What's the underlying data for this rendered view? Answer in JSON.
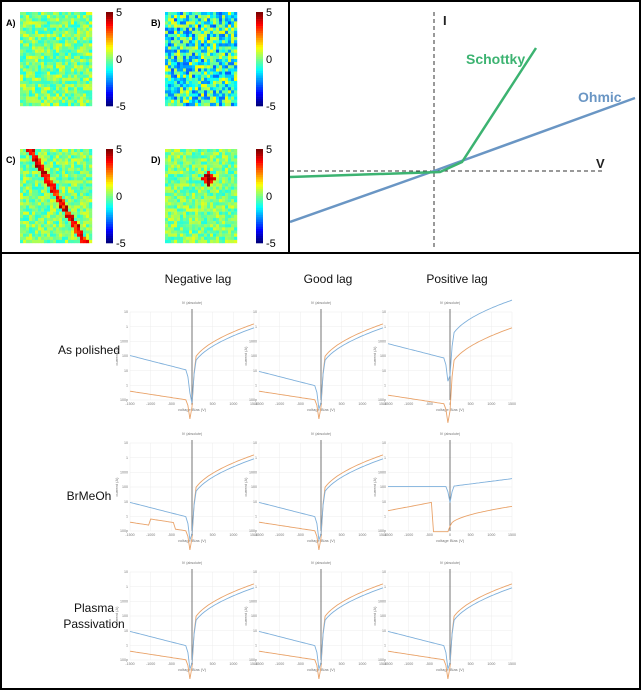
{
  "heatmaps": {
    "panels": [
      {
        "letter": "A)",
        "pattern": "noise-low"
      },
      {
        "letter": "B)",
        "pattern": "noise-high"
      },
      {
        "letter": "C)",
        "pattern": "diagonal-line"
      },
      {
        "letter": "D)",
        "pattern": "hot-cluster"
      }
    ],
    "colorbar_ticks": [
      "5",
      "0",
      "-5"
    ],
    "colorbar_ticks_d": [
      "5",
      "0",
      "-5"
    ],
    "colormap": "jet"
  },
  "iv_sketch": {
    "y_axis_label": "I",
    "x_axis_label": "V",
    "schottky_label": "Schottky",
    "ohmic_label": "Ohmic",
    "schottky_color": "#3cb371",
    "ohmic_color": "#6a96c4"
  },
  "grid": {
    "columns": [
      "Negative lag",
      "Good lag",
      "Positive lag"
    ],
    "rows": [
      "As polished",
      "BrMeOh",
      "Plasma Passivation"
    ],
    "subplot_title": "IV (absolute)",
    "x_axis_label": "voltage Bias (V)",
    "y_axis_label": "current (A)",
    "x_ticks": [
      "-1500",
      "-1000",
      "-500",
      "0",
      "500",
      "1000",
      "1500"
    ],
    "y_ticks": [
      "10",
      "1",
      "1000",
      "100",
      "10",
      "1",
      "100p"
    ],
    "series_colors": [
      "#e9a36a",
      "#7fb0db"
    ]
  },
  "chart_data": [
    {
      "type": "heatmap",
      "title": "",
      "panels": [
        "A)",
        "B)",
        "C)",
        "D)"
      ],
      "colorbar_range": [
        -5,
        5
      ],
      "colorbar_ticks": [
        5,
        0,
        -5
      ]
    },
    {
      "type": "line",
      "title": "",
      "xlabel": "V",
      "ylabel": "I",
      "series": [
        {
          "name": "Schottky",
          "x": [
            -10,
            1,
            2.2,
            7.2
          ],
          "y": [
            -0.5,
            0.05,
            0.35,
            6.2
          ]
        },
        {
          "name": "Ohmic",
          "x": [
            -10,
            0,
            14.7
          ],
          "y": [
            -2.1,
            0,
            3.3
          ]
        }
      ]
    },
    {
      "type": "line",
      "title": "",
      "xlabel": "voltage Bias (V)",
      "ylabel": "current (A)",
      "columns": [
        "Negative lag",
        "Good lag",
        "Positive lag"
      ],
      "rows": [
        "As polished",
        "BrMeOh",
        "Plasma Passivation"
      ],
      "x_range": [
        -1500,
        1500
      ]
    }
  ]
}
